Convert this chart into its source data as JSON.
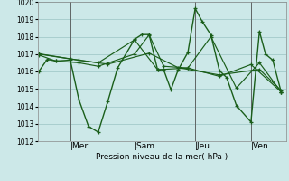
{
  "xlabel": "Pression niveau de la mer( hPa )",
  "bg_color": "#cce8e8",
  "line_color": "#1a5e1a",
  "grid_color": "#a8cece",
  "ylim": [
    1012,
    1020
  ],
  "yticks": [
    1012,
    1013,
    1014,
    1015,
    1016,
    1017,
    1018,
    1019,
    1020
  ],
  "day_labels": [
    "|Mer",
    "|Sam",
    "|Jeu",
    "|Ven"
  ],
  "day_positions": [
    0.13,
    0.395,
    0.645,
    0.875
  ],
  "series": [
    [
      0.0,
      1016.0,
      0.035,
      1016.7,
      0.07,
      1016.6,
      0.13,
      1016.65,
      0.165,
      1014.4,
      0.205,
      1012.85,
      0.245,
      1012.52,
      0.285,
      1014.3,
      0.325,
      1016.2,
      0.395,
      1017.85,
      0.425,
      1018.12,
      0.455,
      1018.12,
      0.49,
      1016.1,
      0.515,
      1016.1,
      0.545,
      1014.95,
      0.575,
      1016.1,
      0.615,
      1017.1,
      0.645,
      1019.62,
      0.675,
      1018.85,
      0.71,
      1018.1,
      0.745,
      1016.05,
      0.775,
      1015.65,
      0.815,
      1014.05,
      0.875,
      1013.1,
      0.91,
      1018.3,
      0.935,
      1017.0,
      0.965,
      1016.65,
      1.0,
      1014.8
    ],
    [
      0.0,
      1016.95,
      0.07,
      1016.6,
      0.165,
      1016.5,
      0.245,
      1016.3,
      0.395,
      1017.0,
      0.455,
      1018.1,
      0.515,
      1016.3,
      0.615,
      1016.2,
      0.71,
      1018.0,
      0.815,
      1015.05,
      0.91,
      1016.5,
      1.0,
      1014.82
    ],
    [
      0.0,
      1017.0,
      0.13,
      1016.72,
      0.245,
      1016.5,
      0.395,
      1017.82,
      0.49,
      1016.1,
      0.615,
      1016.2,
      0.745,
      1015.72,
      0.875,
      1016.4,
      1.0,
      1014.82
    ],
    [
      0.0,
      1017.02,
      0.165,
      1016.65,
      0.285,
      1016.42,
      0.455,
      1017.05,
      0.575,
      1016.22,
      0.745,
      1015.8,
      0.91,
      1016.12,
      1.0,
      1014.9
    ]
  ]
}
